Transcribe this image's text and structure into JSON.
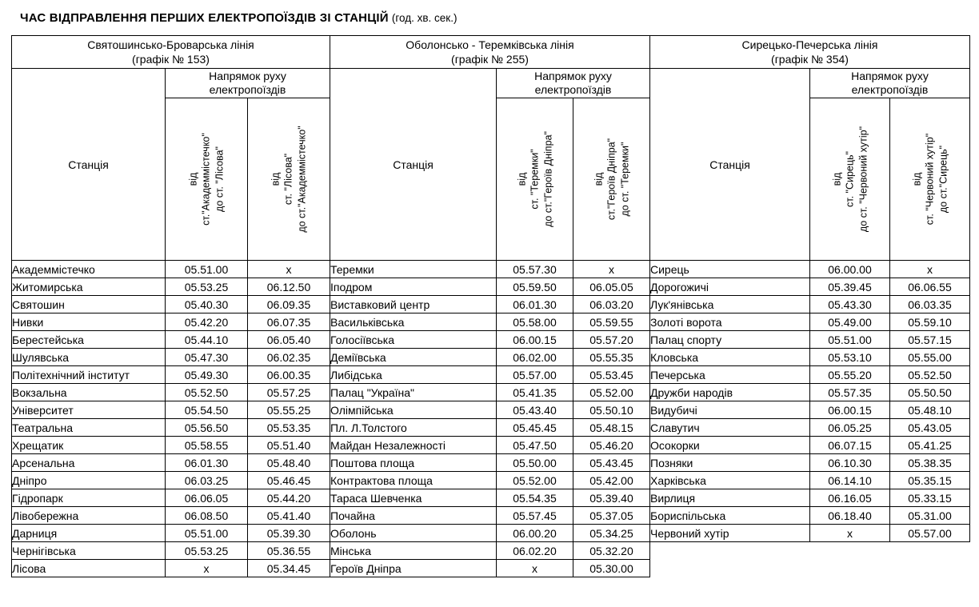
{
  "page_title": {
    "main": "ЧАС ВІДПРАВЛЕННЯ ПЕРШИХ ЕЛЕКТРОПОЇЗДІВ ЗІ СТАНЦІЙ",
    "unit_note": "(год. хв. сек.)"
  },
  "table": {
    "station_header": "Станція",
    "direction_header": [
      "Напрямок руху",
      "електропоїздів"
    ],
    "sections": [
      {
        "line_name": "Святошинсько-Броварська лінія",
        "schedule": "(графік № 153)",
        "directions": [
          {
            "lines": [
              "від",
              "ст.\"Академмістечко\"",
              "до ст. \"Лісова\""
            ]
          },
          {
            "lines": [
              "від",
              "ст. \"Лісова\"",
              "до ст.\"Академмістечко\""
            ]
          }
        ],
        "rows": [
          {
            "station": "Академмістечко",
            "t1": "05.51.00",
            "t2": "x"
          },
          {
            "station": "Житомирська",
            "t1": "05.53.25",
            "t2": "06.12.50"
          },
          {
            "station": "Святошин",
            "t1": "05.40.30",
            "t2": "06.09.35"
          },
          {
            "station": "Нивки",
            "t1": "05.42.20",
            "t2": "06.07.35"
          },
          {
            "station": "Берестейська",
            "t1": "05.44.10",
            "t2": "06.05.40"
          },
          {
            "station": "Шулявська",
            "t1": "05.47.30",
            "t2": "06.02.35"
          },
          {
            "station": "Політехнічний інститут",
            "t1": "05.49.30",
            "t2": "06.00.35"
          },
          {
            "station": "Вокзальна",
            "t1": "05.52.50",
            "t2": "05.57.25"
          },
          {
            "station": "Університет",
            "t1": "05.54.50",
            "t2": "05.55.25"
          },
          {
            "station": "Театральна",
            "t1": "05.56.50",
            "t2": "05.53.35"
          },
          {
            "station": "Хрещатик",
            "t1": "05.58.55",
            "t2": "05.51.40"
          },
          {
            "station": "Арсенальна",
            "t1": "06.01.30",
            "t2": "05.48.40"
          },
          {
            "station": "Дніпро",
            "t1": "06.03.25",
            "t2": "05.46.45"
          },
          {
            "station": "Гідропарк",
            "t1": "06.06.05",
            "t2": "05.44.20"
          },
          {
            "station": "Лівобережна",
            "t1": "06.08.50",
            "t2": "05.41.40"
          },
          {
            "station": "Дарниця",
            "t1": "05.51.00",
            "t2": "05.39.30"
          },
          {
            "station": "Чернігівська",
            "t1": "05.53.25",
            "t2": "05.36.55"
          },
          {
            "station": "Лісова",
            "t1": "x",
            "t2": "05.34.45"
          }
        ]
      },
      {
        "line_name": "Оболонсько - Теремківська лінія",
        "schedule": "(графік № 255)",
        "directions": [
          {
            "lines": [
              "від",
              "ст. \"Теремки\"",
              "до ст.\"Героїв Дніпра\""
            ]
          },
          {
            "lines": [
              "від",
              "ст.\"Героїв Дніпра\"",
              "до ст. \"Теремки\""
            ]
          }
        ],
        "rows": [
          {
            "station": "Теремки",
            "t1": "05.57.30",
            "t2": "x"
          },
          {
            "station": "Іподром",
            "t1": "05.59.50",
            "t2": "06.05.05"
          },
          {
            "station": "Виставковий центр",
            "t1": "06.01.30",
            "t2": "06.03.20"
          },
          {
            "station": "Васильківська",
            "t1": "05.58.00",
            "t2": "05.59.55"
          },
          {
            "station": "Голосіївська",
            "t1": "06.00.15",
            "t2": "05.57.20"
          },
          {
            "station": "Деміївська",
            "t1": "06.02.00",
            "t2": "05.55.35"
          },
          {
            "station": "Либідська",
            "t1": "05.57.00",
            "t2": "05.53.45"
          },
          {
            "station": "Палац \"Україна\"",
            "t1": "05.41.35",
            "t2": "05.52.00"
          },
          {
            "station": "Олімпійська",
            "t1": "05.43.40",
            "t2": "05.50.10"
          },
          {
            "station": "Пл. Л.Толстого",
            "t1": "05.45.45",
            "t2": "05.48.15"
          },
          {
            "station": "Майдан Незалежності",
            "t1": "05.47.50",
            "t2": "05.46.20"
          },
          {
            "station": "Поштова площа",
            "t1": "05.50.00",
            "t2": "05.43.45"
          },
          {
            "station": "Контрактова площа",
            "t1": "05.52.00",
            "t2": "05.42.00"
          },
          {
            "station": "Тараса Шевченка",
            "t1": "05.54.35",
            "t2": "05.39.40"
          },
          {
            "station": "Почайна",
            "t1": "05.57.45",
            "t2": "05.37.05"
          },
          {
            "station": "Оболонь",
            "t1": "06.00.20",
            "t2": "05.34.25"
          },
          {
            "station": "Мінська",
            "t1": "06.02.20",
            "t2": "05.32.20"
          },
          {
            "station": "Героїв Дніпра",
            "t1": "x",
            "t2": "05.30.00"
          }
        ]
      },
      {
        "line_name": "Сирецько-Печерська лінія",
        "schedule": "(графік № 354)",
        "directions": [
          {
            "lines": [
              "від",
              "ст. \"Сирець\"",
              "до ст. \"Червоний хутір\""
            ]
          },
          {
            "lines": [
              "від",
              "ст. \"Червоний хутір\"",
              "до ст.\"Сирець\""
            ]
          }
        ],
        "rows": [
          {
            "station": "Сирець",
            "t1": "06.00.00",
            "t2": "x"
          },
          {
            "station": "Дорогожичі",
            "t1": "05.39.45",
            "t2": "06.06.55"
          },
          {
            "station": "Лук'янівська",
            "t1": "05.43.30",
            "t2": "06.03.35"
          },
          {
            "station": "Золоті ворота",
            "t1": "05.49.00",
            "t2": "05.59.10"
          },
          {
            "station": "Палац спорту",
            "t1": "05.51.00",
            "t2": "05.57.15"
          },
          {
            "station": "Кловська",
            "t1": "05.53.10",
            "t2": "05.55.00"
          },
          {
            "station": "Печерська",
            "t1": "05.55.20",
            "t2": "05.52.50"
          },
          {
            "station": "Дружби народів",
            "t1": "05.57.35",
            "t2": "05.50.50"
          },
          {
            "station": "Видубичі",
            "t1": "06.00.15",
            "t2": "05.48.10"
          },
          {
            "station": "Славутич",
            "t1": "06.05.25",
            "t2": "05.43.05"
          },
          {
            "station": "Осокорки",
            "t1": "06.07.15",
            "t2": "05.41.25"
          },
          {
            "station": "Позняки",
            "t1": "06.10.30",
            "t2": "05.38.35"
          },
          {
            "station": "Харківська",
            "t1": "06.14.10",
            "t2": "05.35.15"
          },
          {
            "station": "Вирлиця",
            "t1": "06.16.05",
            "t2": "05.33.15"
          },
          {
            "station": "Бориспільська",
            "t1": "06.18.40",
            "t2": "05.31.00"
          },
          {
            "station": "Червоний хутір",
            "t1": "x",
            "t2": "05.57.00"
          }
        ]
      }
    ]
  }
}
